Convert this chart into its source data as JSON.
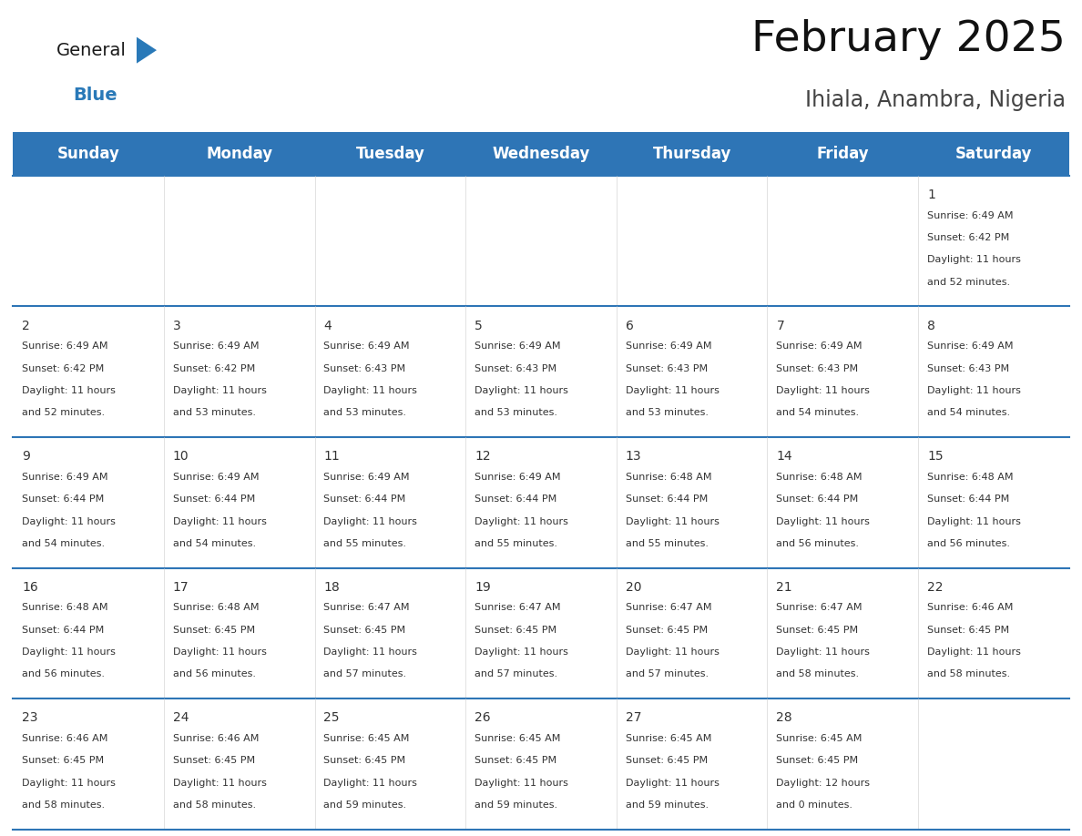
{
  "title": "February 2025",
  "subtitle": "Ihiala, Anambra, Nigeria",
  "header_bg": "#2E75B6",
  "header_text_color": "#FFFFFF",
  "border_color": "#2E75B6",
  "text_color": "#333333",
  "days_of_week": [
    "Sunday",
    "Monday",
    "Tuesday",
    "Wednesday",
    "Thursday",
    "Friday",
    "Saturday"
  ],
  "calendar": [
    [
      null,
      null,
      null,
      null,
      null,
      null,
      {
        "day": 1,
        "sunrise": "6:49 AM",
        "sunset": "6:42 PM",
        "daylight_line1": "Daylight: 11 hours",
        "daylight_line2": "and 52 minutes."
      }
    ],
    [
      {
        "day": 2,
        "sunrise": "6:49 AM",
        "sunset": "6:42 PM",
        "daylight_line1": "Daylight: 11 hours",
        "daylight_line2": "and 52 minutes."
      },
      {
        "day": 3,
        "sunrise": "6:49 AM",
        "sunset": "6:42 PM",
        "daylight_line1": "Daylight: 11 hours",
        "daylight_line2": "and 53 minutes."
      },
      {
        "day": 4,
        "sunrise": "6:49 AM",
        "sunset": "6:43 PM",
        "daylight_line1": "Daylight: 11 hours",
        "daylight_line2": "and 53 minutes."
      },
      {
        "day": 5,
        "sunrise": "6:49 AM",
        "sunset": "6:43 PM",
        "daylight_line1": "Daylight: 11 hours",
        "daylight_line2": "and 53 minutes."
      },
      {
        "day": 6,
        "sunrise": "6:49 AM",
        "sunset": "6:43 PM",
        "daylight_line1": "Daylight: 11 hours",
        "daylight_line2": "and 53 minutes."
      },
      {
        "day": 7,
        "sunrise": "6:49 AM",
        "sunset": "6:43 PM",
        "daylight_line1": "Daylight: 11 hours",
        "daylight_line2": "and 54 minutes."
      },
      {
        "day": 8,
        "sunrise": "6:49 AM",
        "sunset": "6:43 PM",
        "daylight_line1": "Daylight: 11 hours",
        "daylight_line2": "and 54 minutes."
      }
    ],
    [
      {
        "day": 9,
        "sunrise": "6:49 AM",
        "sunset": "6:44 PM",
        "daylight_line1": "Daylight: 11 hours",
        "daylight_line2": "and 54 minutes."
      },
      {
        "day": 10,
        "sunrise": "6:49 AM",
        "sunset": "6:44 PM",
        "daylight_line1": "Daylight: 11 hours",
        "daylight_line2": "and 54 minutes."
      },
      {
        "day": 11,
        "sunrise": "6:49 AM",
        "sunset": "6:44 PM",
        "daylight_line1": "Daylight: 11 hours",
        "daylight_line2": "and 55 minutes."
      },
      {
        "day": 12,
        "sunrise": "6:49 AM",
        "sunset": "6:44 PM",
        "daylight_line1": "Daylight: 11 hours",
        "daylight_line2": "and 55 minutes."
      },
      {
        "day": 13,
        "sunrise": "6:48 AM",
        "sunset": "6:44 PM",
        "daylight_line1": "Daylight: 11 hours",
        "daylight_line2": "and 55 minutes."
      },
      {
        "day": 14,
        "sunrise": "6:48 AM",
        "sunset": "6:44 PM",
        "daylight_line1": "Daylight: 11 hours",
        "daylight_line2": "and 56 minutes."
      },
      {
        "day": 15,
        "sunrise": "6:48 AM",
        "sunset": "6:44 PM",
        "daylight_line1": "Daylight: 11 hours",
        "daylight_line2": "and 56 minutes."
      }
    ],
    [
      {
        "day": 16,
        "sunrise": "6:48 AM",
        "sunset": "6:44 PM",
        "daylight_line1": "Daylight: 11 hours",
        "daylight_line2": "and 56 minutes."
      },
      {
        "day": 17,
        "sunrise": "6:48 AM",
        "sunset": "6:45 PM",
        "daylight_line1": "Daylight: 11 hours",
        "daylight_line2": "and 56 minutes."
      },
      {
        "day": 18,
        "sunrise": "6:47 AM",
        "sunset": "6:45 PM",
        "daylight_line1": "Daylight: 11 hours",
        "daylight_line2": "and 57 minutes."
      },
      {
        "day": 19,
        "sunrise": "6:47 AM",
        "sunset": "6:45 PM",
        "daylight_line1": "Daylight: 11 hours",
        "daylight_line2": "and 57 minutes."
      },
      {
        "day": 20,
        "sunrise": "6:47 AM",
        "sunset": "6:45 PM",
        "daylight_line1": "Daylight: 11 hours",
        "daylight_line2": "and 57 minutes."
      },
      {
        "day": 21,
        "sunrise": "6:47 AM",
        "sunset": "6:45 PM",
        "daylight_line1": "Daylight: 11 hours",
        "daylight_line2": "and 58 minutes."
      },
      {
        "day": 22,
        "sunrise": "6:46 AM",
        "sunset": "6:45 PM",
        "daylight_line1": "Daylight: 11 hours",
        "daylight_line2": "and 58 minutes."
      }
    ],
    [
      {
        "day": 23,
        "sunrise": "6:46 AM",
        "sunset": "6:45 PM",
        "daylight_line1": "Daylight: 11 hours",
        "daylight_line2": "and 58 minutes."
      },
      {
        "day": 24,
        "sunrise": "6:46 AM",
        "sunset": "6:45 PM",
        "daylight_line1": "Daylight: 11 hours",
        "daylight_line2": "and 58 minutes."
      },
      {
        "day": 25,
        "sunrise": "6:45 AM",
        "sunset": "6:45 PM",
        "daylight_line1": "Daylight: 11 hours",
        "daylight_line2": "and 59 minutes."
      },
      {
        "day": 26,
        "sunrise": "6:45 AM",
        "sunset": "6:45 PM",
        "daylight_line1": "Daylight: 11 hours",
        "daylight_line2": "and 59 minutes."
      },
      {
        "day": 27,
        "sunrise": "6:45 AM",
        "sunset": "6:45 PM",
        "daylight_line1": "Daylight: 11 hours",
        "daylight_line2": "and 59 minutes."
      },
      {
        "day": 28,
        "sunrise": "6:45 AM",
        "sunset": "6:45 PM",
        "daylight_line1": "Daylight: 12 hours",
        "daylight_line2": "and 0 minutes."
      },
      null
    ]
  ],
  "logo_color_general": "#1a1a1a",
  "logo_color_blue": "#2979B8",
  "logo_triangle_color": "#2979B8",
  "title_fontsize": 34,
  "subtitle_fontsize": 17,
  "header_fontsize": 12,
  "day_num_fontsize": 10,
  "cell_text_fontsize": 8
}
